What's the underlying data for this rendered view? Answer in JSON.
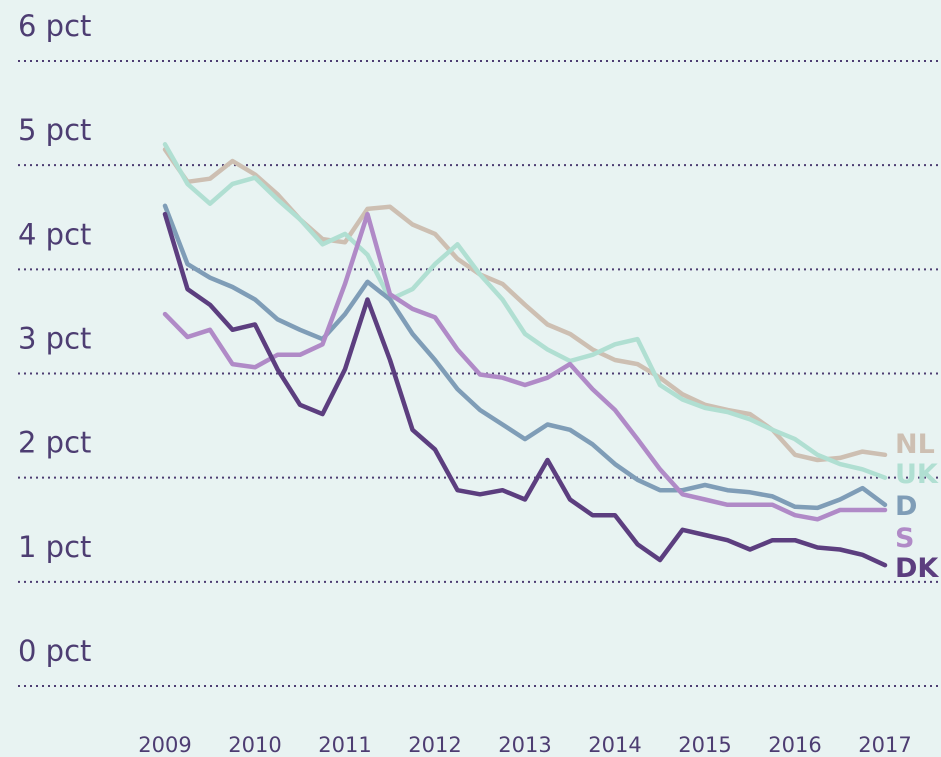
{
  "chart_data": {
    "type": "line",
    "x": [
      2009,
      2009.25,
      2009.5,
      2009.75,
      2010,
      2010.25,
      2010.5,
      2010.75,
      2011,
      2011.25,
      2011.5,
      2011.75,
      2012,
      2012.25,
      2012.5,
      2012.75,
      2013,
      2013.25,
      2013.5,
      2013.75,
      2014,
      2014.25,
      2014.5,
      2014.75,
      2015,
      2015.25,
      2015.5,
      2015.75,
      2016,
      2016.25,
      2016.5,
      2016.75,
      2017
    ],
    "series": [
      {
        "name": "NL",
        "color": "#cdbfb2",
        "values": [
          5.15,
          4.84,
          4.87,
          5.04,
          4.91,
          4.72,
          4.48,
          4.29,
          4.26,
          4.58,
          4.6,
          4.43,
          4.34,
          4.1,
          3.95,
          3.86,
          3.66,
          3.47,
          3.38,
          3.23,
          3.13,
          3.09,
          2.96,
          2.8,
          2.7,
          2.65,
          2.61,
          2.46,
          2.22,
          2.17,
          2.19,
          2.25,
          2.22
        ]
      },
      {
        "name": "UK",
        "color": "#b0dfd2",
        "values": [
          5.2,
          4.82,
          4.63,
          4.82,
          4.88,
          4.67,
          4.48,
          4.24,
          4.34,
          4.14,
          3.71,
          3.81,
          4.05,
          4.24,
          3.95,
          3.71,
          3.38,
          3.23,
          3.12,
          3.18,
          3.28,
          3.33,
          2.89,
          2.75,
          2.67,
          2.63,
          2.56,
          2.46,
          2.37,
          2.22,
          2.13,
          2.08,
          2.0
        ]
      },
      {
        "name": "D",
        "color": "#7f9db7",
        "values": [
          4.61,
          4.05,
          3.92,
          3.83,
          3.71,
          3.52,
          3.42,
          3.33,
          3.57,
          3.88,
          3.71,
          3.38,
          3.13,
          2.85,
          2.65,
          2.51,
          2.37,
          2.51,
          2.46,
          2.32,
          2.13,
          1.98,
          1.88,
          1.88,
          1.93,
          1.88,
          1.86,
          1.82,
          1.72,
          1.71,
          1.79,
          1.9,
          1.74
        ]
      },
      {
        "name": "S",
        "color": "#b08ac7",
        "values": [
          3.57,
          3.35,
          3.42,
          3.09,
          3.06,
          3.18,
          3.18,
          3.28,
          3.86,
          4.53,
          3.76,
          3.62,
          3.54,
          3.23,
          2.99,
          2.96,
          2.89,
          2.96,
          3.09,
          2.85,
          2.65,
          2.37,
          2.08,
          1.84,
          1.79,
          1.74,
          1.74,
          1.74,
          1.64,
          1.6,
          1.69,
          1.69,
          1.69
        ]
      },
      {
        "name": "DK",
        "color": "#5c3e7f",
        "values": [
          4.53,
          3.81,
          3.66,
          3.42,
          3.47,
          3.04,
          2.7,
          2.61,
          3.04,
          3.71,
          3.13,
          2.46,
          2.27,
          1.88,
          1.84,
          1.88,
          1.79,
          2.17,
          1.79,
          1.64,
          1.64,
          1.36,
          1.21,
          1.5,
          1.45,
          1.4,
          1.31,
          1.4,
          1.4,
          1.33,
          1.31,
          1.26,
          1.16
        ]
      }
    ],
    "xlim": [
      2009,
      2017
    ],
    "xticks": [
      2009,
      2010,
      2011,
      2012,
      2013,
      2014,
      2015,
      2016,
      2017
    ],
    "ylim": [
      0,
      6
    ],
    "yticks": [
      {
        "value": 0,
        "label": "0 pct"
      },
      {
        "value": 1,
        "label": "1 pct"
      },
      {
        "value": 2,
        "label": "2 pct"
      },
      {
        "value": 3,
        "label": "3 pct"
      },
      {
        "value": 4,
        "label": "4 pct"
      },
      {
        "value": 5,
        "label": "5 pct"
      },
      {
        "value": 6,
        "label": "6 pct"
      }
    ],
    "grid": true,
    "legend": "right"
  }
}
